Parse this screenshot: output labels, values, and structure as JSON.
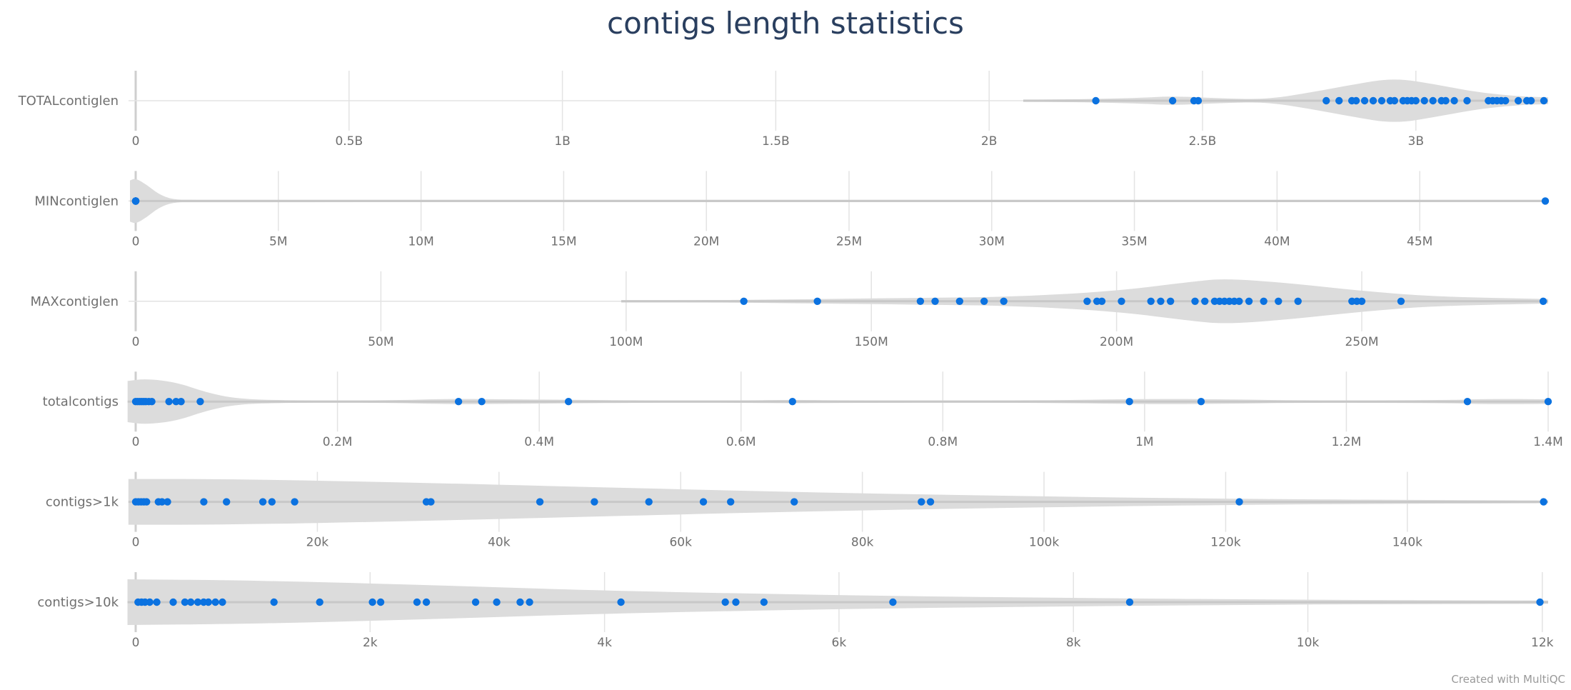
{
  "chart_data": {
    "type": "violin",
    "title": "contigs length statistics",
    "footer": "Created with MultiQC",
    "colors": {
      "point": "#0b72e0",
      "violin": "#dcdcdc",
      "grid": "#e3e3e3",
      "midline": "#c8c8c8",
      "text": "#6f6f6f",
      "title": "#2a3f5f"
    },
    "rows": [
      {
        "label": "TOTALcontiglen",
        "xlim": [
          0,
          3310000000
        ],
        "ticks": [
          0,
          500000000,
          1000000000,
          1500000000,
          2000000000,
          2500000000,
          3000000000
        ],
        "tick_labels": [
          "0",
          "0.5B",
          "1B",
          "1.5B",
          "2B",
          "2.5B",
          "3B"
        ],
        "violin": {
          "start": 2080000000,
          "end": 3310000000,
          "shape": [
            [
              2080000000,
              0.02
            ],
            [
              2200000000,
              0.06
            ],
            [
              2350000000,
              0.12
            ],
            [
              2430000000,
              0.2
            ],
            [
              2550000000,
              0.1
            ],
            [
              2650000000,
              0.06
            ],
            [
              2750000000,
              0.35
            ],
            [
              2850000000,
              0.7
            ],
            [
              2950000000,
              1.0
            ],
            [
              3050000000,
              0.7
            ],
            [
              3150000000,
              0.35
            ],
            [
              3250000000,
              0.18
            ],
            [
              3310000000,
              0.15
            ]
          ]
        },
        "values": [
          2250000000,
          2430000000,
          2480000000,
          2490000000,
          2790000000,
          2820000000,
          2850000000,
          2860000000,
          2880000000,
          2900000000,
          2920000000,
          2940000000,
          2950000000,
          2970000000,
          2980000000,
          2990000000,
          3000000000,
          3020000000,
          3040000000,
          3060000000,
          3070000000,
          3090000000,
          3120000000,
          3170000000,
          3180000000,
          3190000000,
          3200000000,
          3210000000,
          3240000000,
          3260000000,
          3270000000,
          3300000000
        ]
      },
      {
        "label": "MINcontiglen",
        "xlim": [
          0,
          49500000
        ],
        "ticks": [
          0,
          5000000,
          10000000,
          15000000,
          20000000,
          25000000,
          30000000,
          35000000,
          40000000,
          45000000
        ],
        "tick_labels": [
          "0",
          "5M",
          "10M",
          "15M",
          "20M",
          "25M",
          "30M",
          "35M",
          "40M",
          "45M"
        ],
        "violin": {
          "start": -200000,
          "end": 49500000,
          "shape": [
            [
              -200000,
              0.9
            ],
            [
              0,
              1.0
            ],
            [
              400000,
              0.7
            ],
            [
              800000,
              0.3
            ],
            [
              1300000,
              0.06
            ],
            [
              2000000,
              0.04
            ],
            [
              49500000,
              0.04
            ]
          ]
        },
        "values": [
          0,
          30,
          60,
          90,
          120,
          200,
          49400000
        ]
      },
      {
        "label": "MAXcontiglen",
        "xlim": [
          0,
          288000000
        ],
        "ticks": [
          0,
          50000000,
          100000000,
          150000000,
          200000000,
          250000000
        ],
        "tick_labels": [
          "0",
          "50M",
          "100M",
          "150M",
          "200M",
          "250M"
        ],
        "violin": {
          "start": 99000000,
          "end": 288000000,
          "shape": [
            [
              99000000,
              0.02
            ],
            [
              120000000,
              0.05
            ],
            [
              140000000,
              0.1
            ],
            [
              160000000,
              0.15
            ],
            [
              180000000,
              0.2
            ],
            [
              200000000,
              0.45
            ],
            [
              215000000,
              0.85
            ],
            [
              222000000,
              1.0
            ],
            [
              235000000,
              0.8
            ],
            [
              250000000,
              0.45
            ],
            [
              265000000,
              0.2
            ],
            [
              288000000,
              0.1
            ]
          ]
        },
        "values": [
          124000000,
          139000000,
          160000000,
          163000000,
          168000000,
          173000000,
          177000000,
          194000000,
          196000000,
          197000000,
          201000000,
          207000000,
          209000000,
          211000000,
          216000000,
          218000000,
          220000000,
          221000000,
          222000000,
          223000000,
          224000000,
          225000000,
          227000000,
          230000000,
          233000000,
          237000000,
          248000000,
          249000000,
          250000000,
          258000000,
          287000000
        ]
      },
      {
        "label": "totalcontigs",
        "xlim": [
          0,
          1400000
        ],
        "ticks": [
          0,
          200000,
          400000,
          600000,
          800000,
          1000000,
          1200000,
          1400000
        ],
        "tick_labels": [
          "0",
          "0.2M",
          "0.4M",
          "0.6M",
          "0.8M",
          "1M",
          "1.2M",
          "1.4M"
        ],
        "violin": {
          "start": -8000,
          "end": 1400000,
          "shape": [
            [
              -8000,
              0.9
            ],
            [
              10000,
              1.0
            ],
            [
              40000,
              0.85
            ],
            [
              70000,
              0.4
            ],
            [
              100000,
              0.12
            ],
            [
              150000,
              0.04
            ],
            [
              250000,
              0.04
            ],
            [
              310000,
              0.12
            ],
            [
              360000,
              0.1
            ],
            [
              430000,
              0.08
            ],
            [
              500000,
              0.04
            ],
            [
              600000,
              0.04
            ],
            [
              650000,
              0.08
            ],
            [
              700000,
              0.04
            ],
            [
              900000,
              0.04
            ],
            [
              1000000,
              0.12
            ],
            [
              1080000,
              0.1
            ],
            [
              1150000,
              0.04
            ],
            [
              1300000,
              0.06
            ],
            [
              1340000,
              0.12
            ],
            [
              1400000,
              0.1
            ]
          ]
        },
        "values": [
          0,
          2000,
          4000,
          6000,
          8000,
          10000,
          13000,
          16000,
          33000,
          40000,
          45000,
          64000,
          320000,
          343000,
          429000,
          651000,
          985000,
          1056000,
          1320000,
          1400000
        ]
      },
      {
        "label": "contigs>1k",
        "xlim": [
          0,
          155500
        ],
        "ticks": [
          0,
          20000,
          40000,
          60000,
          80000,
          100000,
          120000,
          140000
        ],
        "tick_labels": [
          "0",
          "20k",
          "40k",
          "60k",
          "80k",
          "100k",
          "120k",
          "140k"
        ],
        "violin": {
          "start": -800,
          "end": 155500,
          "shape": [
            [
              -800,
              1.0
            ],
            [
              10000,
              1.0
            ],
            [
              30000,
              0.85
            ],
            [
              50000,
              0.65
            ],
            [
              70000,
              0.45
            ],
            [
              90000,
              0.3
            ],
            [
              110000,
              0.18
            ],
            [
              130000,
              0.1
            ],
            [
              155500,
              0.06
            ]
          ]
        },
        "values": [
          0,
          300,
          600,
          900,
          1200,
          2500,
          2900,
          3500,
          7500,
          10000,
          14000,
          15000,
          17500,
          32000,
          32500,
          44500,
          50500,
          56500,
          62500,
          65500,
          72500,
          86500,
          87500,
          121500,
          155000
        ]
      },
      {
        "label": "contigs>10k",
        "xlim": [
          0,
          12050
        ],
        "ticks": [
          0,
          2000,
          4000,
          6000,
          8000,
          10000,
          12000
        ],
        "tick_labels": [
          "0",
          "2k",
          "4k",
          "6k",
          "8k",
          "10k",
          "12k"
        ],
        "violin": {
          "start": -70,
          "end": 12050,
          "shape": [
            [
              -70,
              1.0
            ],
            [
              1000,
              0.95
            ],
            [
              2500,
              0.75
            ],
            [
              4000,
              0.5
            ],
            [
              6000,
              0.3
            ],
            [
              8000,
              0.18
            ],
            [
              10000,
              0.1
            ],
            [
              12050,
              0.07
            ]
          ]
        },
        "values": [
          20,
          50,
          80,
          120,
          180,
          320,
          420,
          470,
          530,
          580,
          620,
          680,
          740,
          1180,
          1570,
          2020,
          2090,
          2400,
          2480,
          2900,
          3080,
          3280,
          3360,
          4140,
          5030,
          5120,
          5360,
          6460,
          8480,
          11980
        ]
      }
    ]
  }
}
